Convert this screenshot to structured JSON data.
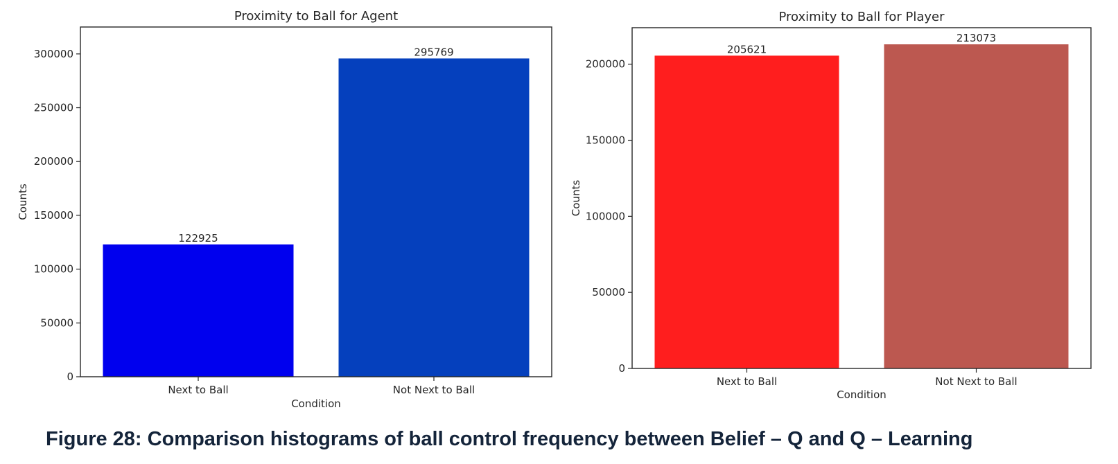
{
  "chart_data": [
    {
      "type": "bar",
      "title": "Proximity to Ball for Agent",
      "xlabel": "Condition",
      "ylabel": "Counts",
      "categories": [
        "Next to Ball",
        "Not Next to Ball"
      ],
      "values": [
        122925,
        295769
      ],
      "data_labels": [
        "122925",
        "295769"
      ],
      "bar_colors": [
        "#0000ee",
        "#0540bd"
      ],
      "yticks": [
        0,
        50000,
        100000,
        150000,
        200000,
        250000,
        300000
      ],
      "ylim": [
        0,
        325000
      ],
      "grid": false,
      "legend": "none"
    },
    {
      "type": "bar",
      "title": "Proximity to Ball for Player",
      "xlabel": "Condition",
      "ylabel": "Counts",
      "categories": [
        "Next to Ball",
        "Not Next to Ball"
      ],
      "values": [
        205621,
        213073
      ],
      "data_labels": [
        "205621",
        "213073"
      ],
      "bar_colors": [
        "#ff1e1e",
        "#bc5850"
      ],
      "yticks": [
        0,
        50000,
        100000,
        150000,
        200000
      ],
      "ylim": [
        0,
        224000
      ],
      "grid": false,
      "legend": "none"
    }
  ],
  "caption": "Figure 28: Comparison histograms of ball control frequency between Belief – Q and Q – Learning"
}
